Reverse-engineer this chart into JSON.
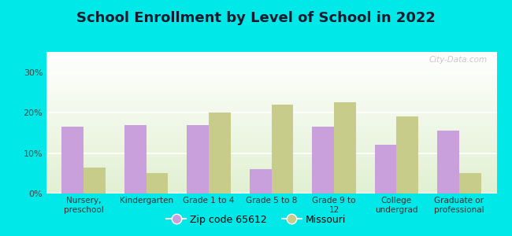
{
  "title": "School Enrollment by Level of School in 2022",
  "categories": [
    "Nursery,\npreschool",
    "Kindergarten",
    "Grade 1 to 4",
    "Grade 5 to 8",
    "Grade 9 to\n12",
    "College\nundergrad",
    "Graduate or\nprofessional"
  ],
  "zip_values": [
    16.5,
    17.0,
    17.0,
    6.0,
    16.5,
    12.0,
    15.5
  ],
  "mo_values": [
    6.5,
    5.0,
    20.0,
    22.0,
    22.5,
    19.0,
    5.0
  ],
  "zip_color": "#c9a0dc",
  "mo_color": "#c8cc8a",
  "zip_label": "Zip code 65612",
  "mo_label": "Missouri",
  "ylim": [
    0,
    35
  ],
  "yticks": [
    0,
    10,
    20,
    30
  ],
  "ytick_labels": [
    "0%",
    "10%",
    "20%",
    "30%"
  ],
  "background_color": "#00e8e8",
  "title_fontsize": 13,
  "bar_width": 0.35,
  "watermark": "City-Data.com"
}
